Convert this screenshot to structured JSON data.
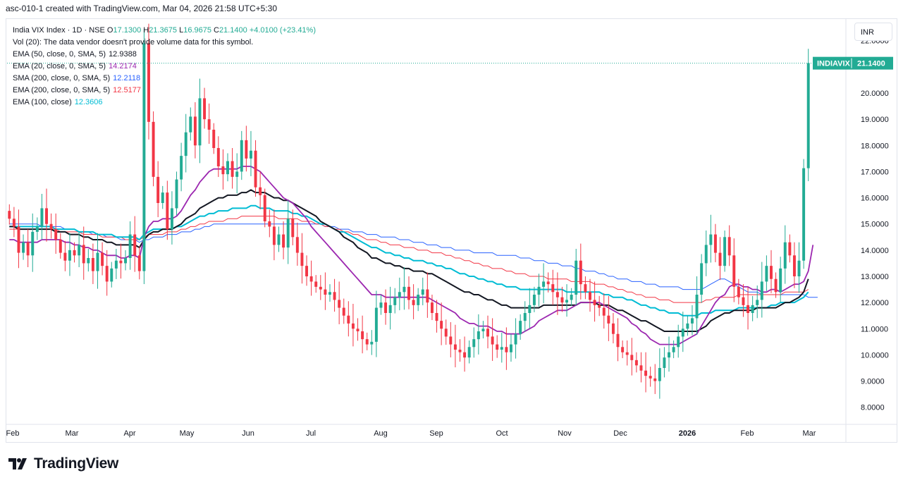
{
  "header": {
    "text": "asc-010-1 created with TradingView.com, Mar 04, 2026 21:58 UTC+5:30"
  },
  "legend": {
    "symbol": "India VIX Index · 1D · NSE",
    "ohlc": [
      {
        "label": "O",
        "value": "17.1300"
      },
      {
        "label": "H",
        "value": "21.3675"
      },
      {
        "label": "L",
        "value": "16.9675"
      },
      {
        "label": "C",
        "value": "21.1400"
      }
    ],
    "change": "+4.0100 (+23.41%)",
    "volume_note": "Vol (20): The data vendor doesn't provide volume data for this symbol.",
    "indicators": [
      {
        "name": "EMA (50, close, 0, SMA, 5)",
        "value": "12.9388",
        "color": "#131722"
      },
      {
        "name": "EMA (20, close, 0, SMA, 5)",
        "value": "14.2174",
        "color": "#9c27b0"
      },
      {
        "name": "SMA (200, close, 0, SMA, 5)",
        "value": "12.2118",
        "color": "#2962ff"
      },
      {
        "name": "EMA (200, close, 0, SMA, 5)",
        "value": "12.5177",
        "color": "#f23645"
      },
      {
        "name": "EMA (100, close)",
        "value": "12.3606",
        "color": "#00bcd4"
      }
    ]
  },
  "currency": "INR",
  "price_tag": {
    "symbol": "INDIAVIX",
    "value": "21.1400"
  },
  "logo": {
    "text": "TradingView"
  },
  "colors": {
    "up": "#22ab94",
    "down": "#f23645",
    "ema50": "#131722",
    "ema20": "#9c27b0",
    "sma200": "#2962ff",
    "ema200": "#f23645",
    "ema100": "#00bcd4"
  },
  "chart_data": {
    "type": "candlestick",
    "y_ticks": [
      "8.0000",
      "9.0000",
      "10.0000",
      "11.0000",
      "12.0000",
      "13.0000",
      "14.0000",
      "15.0000",
      "16.0000",
      "17.0000",
      "18.0000",
      "19.0000",
      "20.0000",
      "22.0000"
    ],
    "x_ticks": [
      "Feb",
      "Mar",
      "Apr",
      "May",
      "Jun",
      "Jul",
      "Aug",
      "Sep",
      "Oct",
      "Nov",
      "Dec",
      "2026",
      "Feb",
      "Mar"
    ],
    "ylim": [
      7.4,
      22.8
    ],
    "last_close": 21.14,
    "closes": [
      15.2,
      14.9,
      13.9,
      14.3,
      13.8,
      14.7,
      14.9,
      15.6,
      15.0,
      14.8,
      14.4,
      13.9,
      13.6,
      14.0,
      13.8,
      14.2,
      13.5,
      13.7,
      13.2,
      13.9,
      13.4,
      12.8,
      13.3,
      13.6,
      13.5,
      13.7,
      14.6,
      13.8,
      13.2,
      21.9,
      18.9,
      16.8,
      15.8,
      16.2,
      14.8,
      15.6,
      16.7,
      17.6,
      18.5,
      19.1,
      18.0,
      19.8,
      19.0,
      18.6,
      17.9,
      17.2,
      16.9,
      17.4,
      16.8,
      17.0,
      18.2,
      17.5,
      17.8,
      16.4,
      16.1,
      15.1,
      14.9,
      14.2,
      14.6,
      14.1,
      15.2,
      14.5,
      13.9,
      13.4,
      13.0,
      12.8,
      12.6,
      12.5,
      12.3,
      12.4,
      12.1,
      11.8,
      11.5,
      11.2,
      11.0,
      10.9,
      10.6,
      10.4,
      10.5,
      11.8,
      12.0,
      11.6,
      11.9,
      12.2,
      12.4,
      12.6,
      12.1,
      11.9,
      12.3,
      12.5,
      12.0,
      11.6,
      11.3,
      11.0,
      10.7,
      10.4,
      10.2,
      10.1,
      9.9,
      10.3,
      10.6,
      10.9,
      11.0,
      10.7,
      10.4,
      10.2,
      10.3,
      10.1,
      10.4,
      10.8,
      11.3,
      11.6,
      11.9,
      12.3,
      12.6,
      12.8,
      12.7,
      12.4,
      12.2,
      12.0,
      12.1,
      12.3,
      13.6,
      12.7,
      12.4,
      12.1,
      11.9,
      11.8,
      11.5,
      11.2,
      10.8,
      10.3,
      10.1,
      10.0,
      9.8,
      9.6,
      9.4,
      9.2,
      9.1,
      9.0,
      9.5,
      9.9,
      10.1,
      10.3,
      10.7,
      11.0,
      11.2,
      11.4,
      12.3,
      13.5,
      14.2,
      14.6,
      13.9,
      13.4,
      14.5,
      13.8,
      12.6,
      12.2,
      11.9,
      11.6,
      11.9,
      12.1,
      12.8,
      13.4,
      12.9,
      12.4,
      13.3,
      14.3,
      13.8,
      13.0,
      13.6,
      17.13,
      21.14
    ],
    "ema20": [
      14.4,
      14.4,
      14.3,
      14.3,
      14.3,
      14.3,
      14.3,
      14.4,
      14.4,
      14.4,
      14.4,
      14.4,
      14.3,
      14.3,
      14.2,
      14.2,
      14.1,
      14.1,
      14.0,
      14.0,
      13.9,
      13.8,
      13.8,
      13.8,
      13.7,
      13.7,
      13.8,
      13.8,
      13.7,
      14.5,
      14.9,
      15.1,
      15.1,
      15.2,
      15.2,
      15.2,
      15.3,
      15.5,
      15.8,
      16.1,
      16.3,
      16.6,
      16.8,
      17.0,
      17.1,
      17.1,
      17.1,
      17.1,
      17.1,
      17.1,
      17.2,
      17.2,
      17.2,
      17.1,
      17.0,
      16.8,
      16.6,
      16.4,
      16.2,
      16.0,
      15.9,
      15.8,
      15.6,
      15.4,
      15.2,
      14.9,
      14.7,
      14.5,
      14.3,
      14.1,
      13.9,
      13.7,
      13.5,
      13.3,
      13.1,
      12.9,
      12.7,
      12.5,
      12.3,
      12.3,
      12.3,
      12.2,
      12.2,
      12.2,
      12.2,
      12.2,
      12.2,
      12.2,
      12.2,
      12.2,
      12.2,
      12.1,
      12.0,
      11.9,
      11.8,
      11.7,
      11.6,
      11.4,
      11.3,
      11.2,
      11.2,
      11.1,
      11.1,
      11.1,
      11.0,
      10.9,
      10.9,
      10.8,
      10.8,
      10.8,
      10.8,
      10.9,
      11.0,
      11.1,
      11.3,
      11.4,
      11.5,
      11.6,
      11.7,
      11.7,
      11.7,
      11.8,
      11.9,
      12.0,
      12.0,
      12.0,
      12.0,
      12.0,
      11.9,
      11.8,
      11.7,
      11.6,
      11.5,
      11.4,
      11.2,
      11.1,
      10.9,
      10.8,
      10.6,
      10.5,
      10.4,
      10.4,
      10.4,
      10.4,
      10.4,
      10.5,
      10.6,
      10.7,
      10.8,
      11.1,
      11.4,
      11.7,
      12.0,
      12.2,
      12.3,
      12.6,
      12.7,
      12.7,
      12.6,
      12.6,
      12.5,
      12.5,
      12.4,
      12.4,
      12.5,
      12.5,
      12.4,
      12.5,
      12.6,
      12.7,
      12.7,
      12.8,
      13.2,
      14.2
    ],
    "ema50": [
      14.9,
      14.9,
      14.8,
      14.8,
      14.8,
      14.8,
      14.8,
      14.8,
      14.8,
      14.8,
      14.7,
      14.7,
      14.7,
      14.6,
      14.6,
      14.6,
      14.5,
      14.5,
      14.4,
      14.4,
      14.4,
      14.3,
      14.3,
      14.2,
      14.2,
      14.2,
      14.2,
      14.2,
      14.1,
      14.4,
      14.6,
      14.7,
      14.7,
      14.8,
      14.8,
      14.8,
      14.9,
      15.0,
      15.2,
      15.3,
      15.4,
      15.6,
      15.7,
      15.8,
      15.9,
      16.0,
      16.0,
      16.1,
      16.1,
      16.1,
      16.2,
      16.2,
      16.3,
      16.2,
      16.2,
      16.2,
      16.1,
      16.0,
      16.0,
      15.9,
      15.9,
      15.8,
      15.7,
      15.6,
      15.5,
      15.4,
      15.3,
      15.1,
      15.0,
      14.9,
      14.8,
      14.7,
      14.5,
      14.4,
      14.3,
      14.1,
      14.0,
      13.9,
      13.7,
      13.7,
      13.6,
      13.5,
      13.5,
      13.4,
      13.4,
      13.3,
      13.3,
      13.2,
      13.2,
      13.2,
      13.1,
      13.1,
      13.0,
      12.9,
      12.8,
      12.7,
      12.6,
      12.5,
      12.4,
      12.4,
      12.3,
      12.3,
      12.2,
      12.1,
      12.1,
      12.0,
      11.9,
      11.9,
      11.8,
      11.8,
      11.8,
      11.8,
      11.8,
      11.8,
      11.8,
      11.9,
      11.9,
      11.9,
      11.9,
      11.9,
      11.9,
      11.9,
      11.9,
      12.0,
      12.0,
      12.0,
      12.0,
      11.9,
      11.9,
      11.9,
      11.8,
      11.7,
      11.7,
      11.6,
      11.5,
      11.4,
      11.3,
      11.3,
      11.2,
      11.1,
      11.0,
      10.9,
      10.9,
      10.9,
      10.9,
      10.9,
      10.9,
      10.9,
      10.9,
      11.0,
      11.1,
      11.3,
      11.4,
      11.5,
      11.6,
      11.6,
      11.7,
      11.7,
      11.7,
      11.7,
      11.7,
      11.8,
      11.8,
      11.8,
      11.8,
      11.8,
      11.9,
      12.0,
      12.0,
      12.1,
      12.2,
      12.4,
      12.9
    ],
    "ema100": [
      14.9,
      14.9,
      14.9,
      14.9,
      14.9,
      14.9,
      14.9,
      14.9,
      14.9,
      14.9,
      14.8,
      14.8,
      14.8,
      14.8,
      14.8,
      14.7,
      14.7,
      14.7,
      14.7,
      14.6,
      14.6,
      14.6,
      14.6,
      14.5,
      14.5,
      14.5,
      14.5,
      14.5,
      14.4,
      14.6,
      14.7,
      14.8,
      14.8,
      14.8,
      14.8,
      14.8,
      14.9,
      14.9,
      15.0,
      15.1,
      15.2,
      15.3,
      15.3,
      15.4,
      15.4,
      15.5,
      15.5,
      15.5,
      15.6,
      15.6,
      15.6,
      15.6,
      15.7,
      15.7,
      15.6,
      15.6,
      15.6,
      15.5,
      15.5,
      15.5,
      15.5,
      15.4,
      15.4,
      15.3,
      15.3,
      15.2,
      15.1,
      15.0,
      15.0,
      14.9,
      14.8,
      14.7,
      14.7,
      14.6,
      14.5,
      14.4,
      14.3,
      14.2,
      14.1,
      14.1,
      14.0,
      13.9,
      13.9,
      13.8,
      13.8,
      13.7,
      13.7,
      13.6,
      13.6,
      13.6,
      13.5,
      13.5,
      13.4,
      13.4,
      13.3,
      13.3,
      13.2,
      13.1,
      13.1,
      13.0,
      13.0,
      12.9,
      12.9,
      12.8,
      12.8,
      12.7,
      12.7,
      12.6,
      12.6,
      12.6,
      12.5,
      12.5,
      12.5,
      12.5,
      12.5,
      12.5,
      12.5,
      12.5,
      12.5,
      12.5,
      12.4,
      12.4,
      12.4,
      12.4,
      12.4,
      12.4,
      12.4,
      12.4,
      12.3,
      12.3,
      12.2,
      12.2,
      12.2,
      12.1,
      12.1,
      12.0,
      11.9,
      11.9,
      11.8,
      11.8,
      11.7,
      11.7,
      11.6,
      11.6,
      11.6,
      11.5,
      11.5,
      11.5,
      11.5,
      11.6,
      11.6,
      11.6,
      11.7,
      11.7,
      11.7,
      11.7,
      11.7,
      11.8,
      11.8,
      11.8,
      11.8,
      11.8,
      11.8,
      11.8,
      11.9,
      11.9,
      12.0,
      12.0,
      12.0,
      12.0,
      12.1,
      12.2,
      12.4
    ],
    "ema200": [
      14.8,
      14.8,
      14.8,
      14.8,
      14.8,
      14.8,
      14.8,
      14.8,
      14.8,
      14.8,
      14.8,
      14.7,
      14.7,
      14.7,
      14.7,
      14.7,
      14.6,
      14.6,
      14.6,
      14.6,
      14.5,
      14.5,
      14.5,
      14.5,
      14.5,
      14.4,
      14.4,
      14.4,
      14.4,
      14.5,
      14.6,
      14.6,
      14.6,
      14.6,
      14.7,
      14.7,
      14.7,
      14.8,
      14.8,
      14.9,
      14.9,
      15.0,
      15.0,
      15.1,
      15.1,
      15.1,
      15.1,
      15.2,
      15.2,
      15.2,
      15.3,
      15.3,
      15.3,
      15.3,
      15.3,
      15.3,
      15.3,
      15.3,
      15.2,
      15.2,
      15.2,
      15.2,
      15.2,
      15.1,
      15.1,
      15.1,
      15.0,
      15.0,
      14.9,
      14.9,
      14.8,
      14.8,
      14.7,
      14.7,
      14.6,
      14.6,
      14.5,
      14.4,
      14.4,
      14.4,
      14.3,
      14.3,
      14.2,
      14.2,
      14.2,
      14.1,
      14.1,
      14.1,
      14.0,
      14.0,
      14.0,
      13.9,
      13.9,
      13.9,
      13.8,
      13.8,
      13.7,
      13.7,
      13.6,
      13.6,
      13.5,
      13.5,
      13.4,
      13.4,
      13.3,
      13.3,
      13.3,
      13.2,
      13.2,
      13.1,
      13.1,
      13.1,
      13.0,
      13.0,
      13.0,
      13.0,
      12.9,
      12.9,
      12.9,
      12.9,
      12.9,
      12.8,
      12.8,
      12.8,
      12.8,
      12.8,
      12.7,
      12.7,
      12.7,
      12.6,
      12.6,
      12.5,
      12.5,
      12.4,
      12.4,
      12.3,
      12.3,
      12.2,
      12.2,
      12.2,
      12.1,
      12.1,
      12.1,
      12.0,
      12.0,
      12.0,
      12.0,
      12.0,
      12.0,
      12.0,
      12.1,
      12.1,
      12.2,
      12.2,
      12.2,
      12.2,
      12.2,
      12.3,
      12.3,
      12.3,
      12.3,
      12.3,
      12.3,
      12.3,
      12.3,
      12.3,
      12.3,
      12.4,
      12.4,
      12.4,
      12.4,
      12.4,
      12.5
    ],
    "sma200": [
      15.0,
      15.0,
      15.0,
      15.0,
      15.0,
      15.0,
      15.0,
      14.9,
      14.9,
      14.9,
      14.9,
      14.9,
      14.8,
      14.8,
      14.8,
      14.7,
      14.7,
      14.7,
      14.6,
      14.6,
      14.6,
      14.5,
      14.5,
      14.5,
      14.4,
      14.4,
      14.4,
      14.4,
      14.3,
      14.4,
      14.4,
      14.5,
      14.5,
      14.5,
      14.6,
      14.6,
      14.6,
      14.7,
      14.7,
      14.7,
      14.8,
      14.8,
      14.9,
      14.9,
      15.0,
      15.0,
      15.0,
      15.0,
      15.0,
      15.0,
      15.0,
      15.0,
      15.0,
      15.0,
      15.0,
      15.0,
      15.0,
      15.0,
      15.0,
      15.0,
      15.0,
      15.0,
      15.0,
      15.0,
      15.0,
      15.0,
      15.0,
      15.0,
      14.9,
      14.9,
      14.9,
      14.8,
      14.8,
      14.8,
      14.7,
      14.7,
      14.7,
      14.6,
      14.6,
      14.6,
      14.5,
      14.5,
      14.5,
      14.5,
      14.4,
      14.4,
      14.4,
      14.3,
      14.3,
      14.3,
      14.2,
      14.2,
      14.2,
      14.1,
      14.1,
      14.1,
      14.0,
      14.0,
      14.0,
      14.0,
      13.9,
      13.9,
      13.9,
      13.9,
      13.9,
      13.8,
      13.8,
      13.8,
      13.8,
      13.8,
      13.7,
      13.7,
      13.7,
      13.6,
      13.6,
      13.6,
      13.5,
      13.5,
      13.5,
      13.4,
      13.4,
      13.4,
      13.3,
      13.3,
      13.2,
      13.2,
      13.2,
      13.1,
      13.1,
      13.0,
      13.0,
      12.9,
      12.9,
      12.9,
      12.8,
      12.8,
      12.8,
      12.7,
      12.7,
      12.7,
      12.6,
      12.6,
      12.6,
      12.6,
      12.6,
      12.5,
      12.5,
      12.5,
      12.5,
      12.5,
      12.6,
      12.7,
      12.8,
      12.9,
      12.9,
      12.8,
      12.7,
      12.6,
      12.5,
      12.4,
      12.4,
      12.4,
      12.3,
      12.3,
      12.3,
      12.3,
      12.3,
      12.3,
      12.3,
      12.3,
      12.3,
      12.3,
      12.2,
      12.2,
      12.2
    ]
  }
}
